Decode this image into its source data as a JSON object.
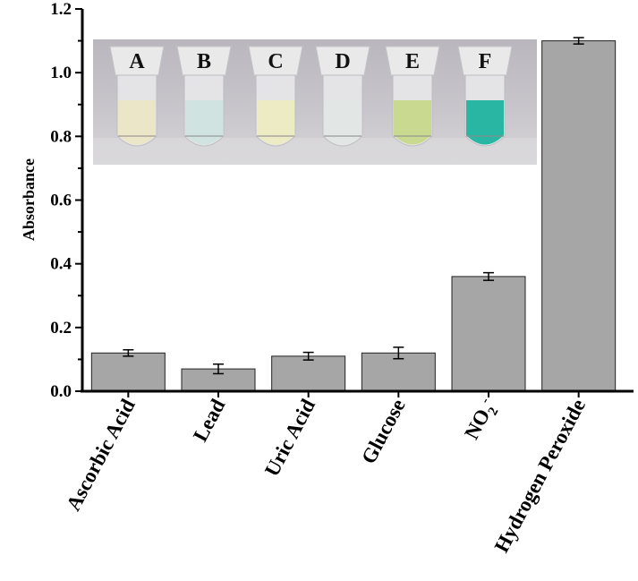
{
  "chart_data": {
    "type": "bar",
    "categories": [
      "Ascorbic Acid",
      "Lead",
      "Uric Acid",
      "Glucose",
      "NO2-",
      "Hydrogen Peroxide"
    ],
    "values": [
      0.12,
      0.07,
      0.11,
      0.12,
      0.36,
      1.1
    ],
    "errors": [
      0.01,
      0.015,
      0.012,
      0.018,
      0.012,
      0.01
    ],
    "xlabel": "",
    "ylabel": "Absorbance",
    "ylim": [
      0,
      1.2
    ],
    "yticks": [
      "0.0",
      "0.2",
      "0.4",
      "0.6",
      "0.8",
      "1.0",
      "1.2"
    ],
    "bar_color": "#a6a6a6",
    "inset": {
      "type": "photo",
      "tube_labels": [
        "A",
        "B",
        "C",
        "D",
        "E",
        "F"
      ],
      "tube_colors": [
        "#ece6c6",
        "#cfe3df",
        "#ecebc2",
        "#e1e6e4",
        "#c7d88a",
        "#1fb39f"
      ]
    }
  }
}
